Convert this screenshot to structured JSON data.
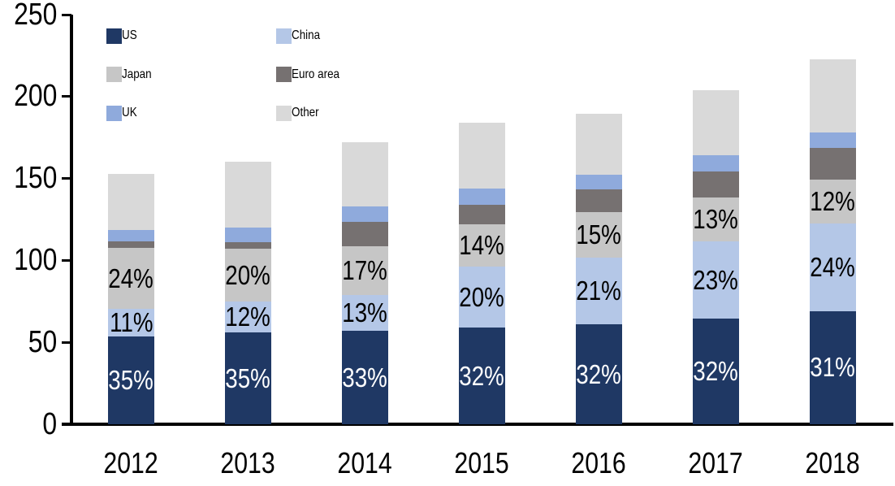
{
  "chart_data": {
    "type": "bar",
    "stacked": true,
    "title": "",
    "xlabel": "",
    "ylabel": "",
    "categories": [
      "2012",
      "2013",
      "2014",
      "2015",
      "2016",
      "2017",
      "2018"
    ],
    "series": [
      {
        "name": "US",
        "color": "#1F3864",
        "values": [
          53.5,
          56,
          57,
          59,
          61,
          64.5,
          69
        ],
        "labels": [
          "35%",
          "35%",
          "33%",
          "32%",
          "32%",
          "32%",
          "31%"
        ],
        "label_color": "#FFFFFF"
      },
      {
        "name": "China",
        "color": "#B4C7E7",
        "values": [
          17,
          19,
          22,
          37,
          40.5,
          47,
          53.5
        ],
        "labels": [
          "11%",
          "12%",
          "13%",
          "20%",
          "21%",
          "23%",
          "24%"
        ],
        "label_color": "#000000"
      },
      {
        "name": "Japan",
        "color": "#C6C6C6",
        "values": [
          37,
          32,
          29.5,
          26,
          28,
          27,
          27
        ],
        "labels": [
          "24%",
          "20%",
          "17%",
          "14%",
          "15%",
          "13%",
          "12%"
        ],
        "label_color": "#000000"
      },
      {
        "name": "Euro area",
        "color": "#767171",
        "values": [
          4,
          4,
          15,
          12,
          14,
          16,
          19
        ]
      },
      {
        "name": "UK",
        "color": "#8FAADC",
        "values": [
          7,
          9,
          9.5,
          10,
          9,
          9.5,
          9.5
        ]
      },
      {
        "name": "Other",
        "color": "#D9D9D9",
        "values": [
          34.5,
          40,
          39,
          40,
          37,
          40,
          44.5
        ]
      }
    ],
    "totals": [
      153,
      160,
      172,
      184,
      189.5,
      204,
      222.5
    ],
    "y_axis": {
      "min": 0,
      "max": 250,
      "step": 50,
      "tick_labels": [
        "0",
        "50",
        "100",
        "150",
        "200",
        "250"
      ]
    },
    "legend": {
      "position": "top-left",
      "columns": [
        [
          "US",
          "Japan",
          "UK"
        ],
        [
          "China",
          "Euro area",
          "Other"
        ]
      ]
    },
    "grid": false,
    "axis_color": "#000000",
    "background_color": "#FFFFFF"
  }
}
